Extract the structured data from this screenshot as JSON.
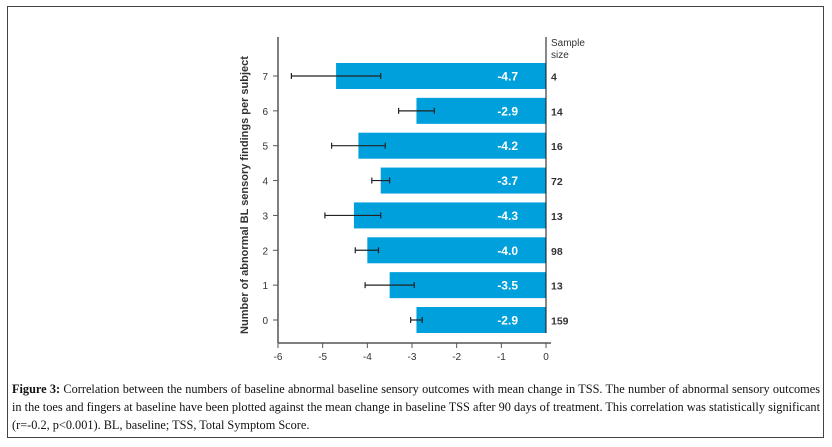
{
  "chart_data": {
    "type": "bar",
    "orientation": "horizontal",
    "ylabel": "Number of abnormal BL sensory findings per subject",
    "xlabel": "",
    "categories": [
      "0",
      "1",
      "2",
      "3",
      "4",
      "5",
      "6",
      "7"
    ],
    "values": [
      -2.9,
      -3.5,
      -4.0,
      -4.3,
      -3.7,
      -4.2,
      -2.9,
      -4.7
    ],
    "value_labels": [
      "-2.9",
      "-3.5",
      "-4.0",
      "-4.3",
      "-3.7",
      "-4.2",
      "-2.9",
      "-4.7"
    ],
    "error_low": [
      -3.03,
      -4.05,
      -4.27,
      -4.95,
      -3.9,
      -4.8,
      -3.3,
      -5.7
    ],
    "error_high": [
      -2.77,
      -2.95,
      -3.75,
      -3.7,
      -3.5,
      -3.6,
      -2.5,
      -3.7
    ],
    "sample_size_header": "Sample size",
    "sample_sizes": [
      "159",
      "13",
      "98",
      "13",
      "72",
      "16",
      "14",
      "4"
    ],
    "xlim": [
      -6,
      0
    ],
    "xticks": [
      "-6",
      "-5",
      "-4",
      "-3",
      "-2",
      "-1",
      "0"
    ],
    "bar_color": "#00a0dc",
    "grid": false
  },
  "caption": {
    "label": "Figure 3:",
    "text": "Correlation between the numbers of baseline abnormal baseline sensory outcomes with mean change in TSS. The number of abnormal sensory outcomes in the toes and fingers at baseline have been plotted against the mean change in baseline TSS after 90 days of treatment. This correlation was statistically significant (r=-0.2, p<0.001). BL, baseline; TSS, Total Symptom Score."
  }
}
